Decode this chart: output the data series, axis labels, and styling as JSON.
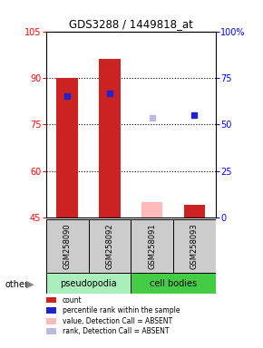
{
  "title": "GDS3288 / 1449818_at",
  "samples": [
    "GSM258090",
    "GSM258092",
    "GSM258091",
    "GSM258093"
  ],
  "ylim_left": [
    45,
    105
  ],
  "ylim_right": [
    0,
    100
  ],
  "yticks_left": [
    45,
    60,
    75,
    90,
    105
  ],
  "yticks_right": [
    0,
    25,
    50,
    75,
    100
  ],
  "bar_values": [
    90,
    96,
    50,
    49
  ],
  "bar_colors": [
    "#cc2222",
    "#cc2222",
    "#ffbbbb",
    "#cc2222"
  ],
  "bar_bottom": 45,
  "rank_values": [
    84,
    85,
    77,
    78
  ],
  "rank_colors": [
    "#2222cc",
    "#2222cc",
    "#bbbbdd",
    "#2222cc"
  ],
  "group_colors": {
    "pseudopodia": "#aaeebb",
    "cell bodies": "#44cc44"
  },
  "legend_items": [
    {
      "label": "count",
      "color": "#cc2222"
    },
    {
      "label": "percentile rank within the sample",
      "color": "#2222cc"
    },
    {
      "label": "value, Detection Call = ABSENT",
      "color": "#ffbbbb"
    },
    {
      "label": "rank, Detection Call = ABSENT",
      "color": "#bbbbdd"
    }
  ],
  "other_label": "other",
  "bar_width": 0.5
}
